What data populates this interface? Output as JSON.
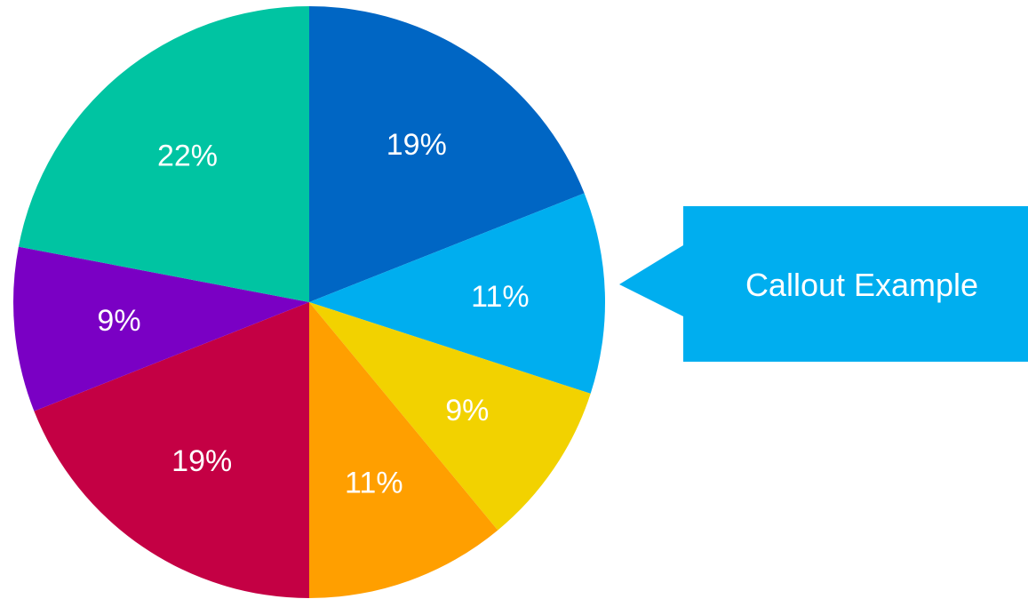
{
  "chart_data": {
    "type": "pie",
    "title": "",
    "slices": [
      {
        "label": "19%",
        "value": 19,
        "color": "#0066C4"
      },
      {
        "label": "11%",
        "value": 11,
        "color": "#00AEEF"
      },
      {
        "label": "9%",
        "value": 9,
        "color": "#F2D200"
      },
      {
        "label": "11%",
        "value": 11,
        "color": "#FF9F00"
      },
      {
        "label": "19%",
        "value": 19,
        "color": "#C40044"
      },
      {
        "label": "9%",
        "value": 9,
        "color": "#7A00C4"
      },
      {
        "label": "22%",
        "value": 22,
        "color": "#00C4A2"
      }
    ],
    "start_angle_deg": 0,
    "direction": "clockwise"
  },
  "callout": {
    "text": "Callout Example",
    "color": "#00AEEF",
    "points_to_slice_index": 1
  }
}
